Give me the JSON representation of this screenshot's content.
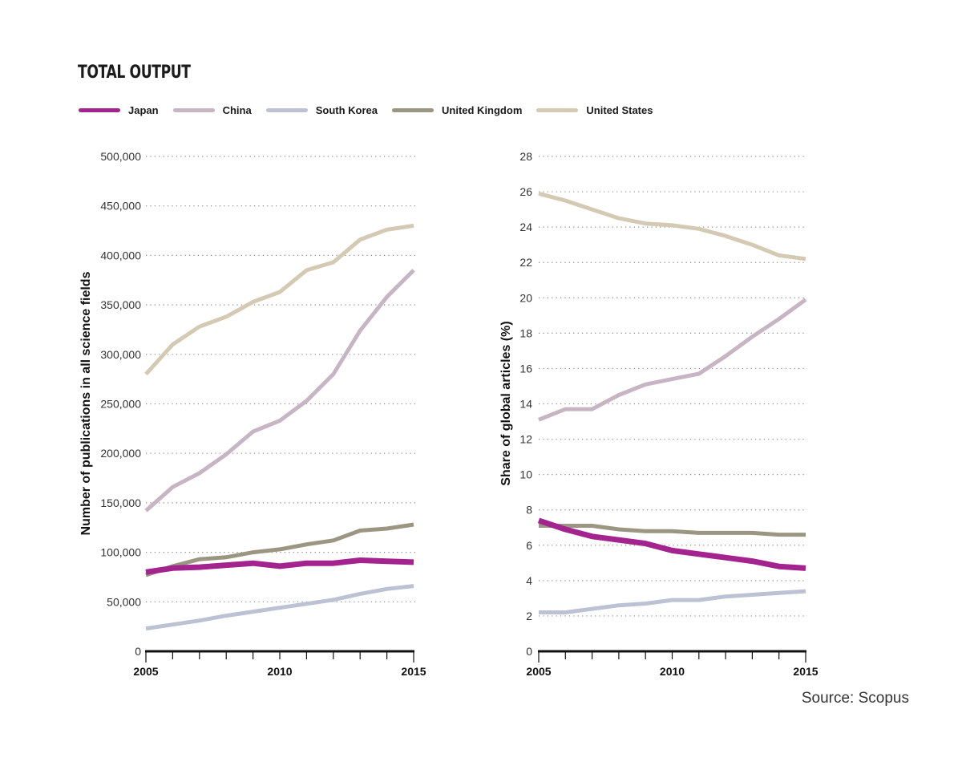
{
  "title": "TOTAL OUTPUT",
  "source": "Source: Scopus",
  "legend": [
    {
      "name": "Japan",
      "color": "#a3238f"
    },
    {
      "name": "China",
      "color": "#c8b5c4"
    },
    {
      "name": "South Korea",
      "color": "#bcc2d3"
    },
    {
      "name": "United Kingdom",
      "color": "#9a9682"
    },
    {
      "name": "United States",
      "color": "#d4cab3"
    }
  ],
  "chart_data": [
    {
      "type": "line",
      "title": "",
      "xlabel": "",
      "ylabel": "Number of publications in all science fields",
      "x": [
        2005,
        2006,
        2007,
        2008,
        2009,
        2010,
        2011,
        2012,
        2013,
        2014,
        2015
      ],
      "xticks": [
        2005,
        2010,
        2015
      ],
      "ylim": [
        0,
        500000
      ],
      "yticks": [
        0,
        50000,
        100000,
        150000,
        200000,
        250000,
        300000,
        350000,
        400000,
        450000,
        500000
      ],
      "ytick_labels": [
        "0",
        "50,000",
        "100,000",
        "150,000",
        "200,000",
        "250,000",
        "300,000",
        "350,000",
        "400,000",
        "450,000",
        "500,000"
      ],
      "grid": "horizontal dotted",
      "series": [
        {
          "name": "Japan",
          "color": "#a3238f",
          "values": [
            80000,
            84000,
            85000,
            87000,
            89000,
            86000,
            89000,
            89000,
            92000,
            91000,
            90000
          ]
        },
        {
          "name": "China",
          "color": "#c8b5c4",
          "values": [
            142000,
            166000,
            180000,
            199000,
            222000,
            233000,
            253000,
            280000,
            324000,
            358000,
            385000
          ]
        },
        {
          "name": "South Korea",
          "color": "#bcc2d3",
          "values": [
            23000,
            27000,
            31000,
            36000,
            40000,
            44000,
            48000,
            52000,
            58000,
            63000,
            66000
          ]
        },
        {
          "name": "United Kingdom",
          "color": "#9a9682",
          "values": [
            77000,
            86000,
            93000,
            95000,
            100000,
            103000,
            108000,
            112000,
            122000,
            124000,
            128000
          ]
        },
        {
          "name": "United States",
          "color": "#d4cab3",
          "values": [
            280000,
            310000,
            328000,
            338000,
            353000,
            363000,
            385000,
            393000,
            416000,
            426000,
            430000
          ]
        }
      ]
    },
    {
      "type": "line",
      "title": "",
      "xlabel": "",
      "ylabel": "Share of global articles (%)",
      "x": [
        2005,
        2006,
        2007,
        2008,
        2009,
        2010,
        2011,
        2012,
        2013,
        2014,
        2015
      ],
      "xticks": [
        2005,
        2010,
        2015
      ],
      "ylim": [
        0,
        28
      ],
      "yticks": [
        0,
        2,
        4,
        6,
        8,
        10,
        12,
        14,
        16,
        18,
        20,
        22,
        24,
        26,
        28
      ],
      "ytick_labels": [
        "0",
        "2",
        "4",
        "6",
        "8",
        "10",
        "12",
        "14",
        "16",
        "18",
        "20",
        "22",
        "24",
        "26",
        "28"
      ],
      "grid": "horizontal dotted",
      "series": [
        {
          "name": "Japan",
          "color": "#a3238f",
          "values": [
            7.4,
            6.9,
            6.5,
            6.3,
            6.1,
            5.7,
            5.5,
            5.3,
            5.1,
            4.8,
            4.7
          ]
        },
        {
          "name": "China",
          "color": "#c8b5c4",
          "values": [
            13.1,
            13.7,
            13.7,
            14.5,
            15.1,
            15.4,
            15.7,
            16.7,
            17.8,
            18.8,
            19.9
          ]
        },
        {
          "name": "South Korea",
          "color": "#bcc2d3",
          "values": [
            2.2,
            2.2,
            2.4,
            2.6,
            2.7,
            2.9,
            2.9,
            3.1,
            3.2,
            3.3,
            3.4
          ]
        },
        {
          "name": "United Kingdom",
          "color": "#9a9682",
          "values": [
            7.1,
            7.1,
            7.1,
            6.9,
            6.8,
            6.8,
            6.7,
            6.7,
            6.7,
            6.6,
            6.6
          ]
        },
        {
          "name": "United States",
          "color": "#d4cab3",
          "values": [
            25.9,
            25.5,
            25.0,
            24.5,
            24.2,
            24.1,
            23.9,
            23.5,
            23.0,
            22.4,
            22.2
          ]
        }
      ]
    }
  ]
}
